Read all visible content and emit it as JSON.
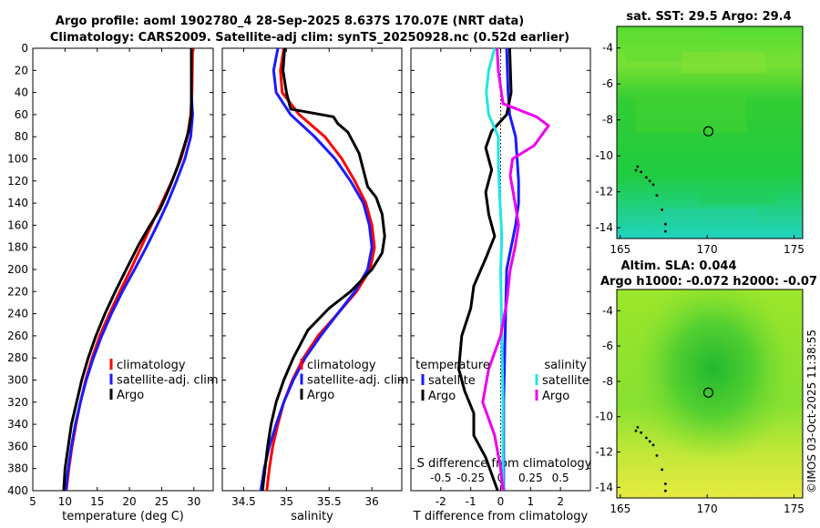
{
  "title": {
    "line1": "Argo profile: aoml 1902780_4 28-Sep-2025 8.637S 170.07E (NRT data)",
    "line2": "Climatology: CARS2009. Satellite-adj clim: synTS_20250928.nc (0.52d earlier)"
  },
  "side_label": "©IMOS 03-Oct-2025 11:38:55",
  "colors": {
    "climatology": "#ff0000",
    "satellite": "#1a1aff",
    "argo": "#000000",
    "sat_diff": "#22e5e5",
    "argo_sal_diff": "#ee00ee"
  },
  "depth_ticks": [
    0,
    20,
    40,
    60,
    80,
    100,
    120,
    140,
    160,
    180,
    200,
    220,
    240,
    260,
    280,
    300,
    320,
    340,
    360,
    380,
    400
  ],
  "chart_data": [
    {
      "type": "line",
      "name": "temperature",
      "xlabel": "temperature (deg C)",
      "ylabel": "depth",
      "xlim": [
        5,
        33
      ],
      "ylim": [
        400,
        0
      ],
      "xticks": [
        5,
        10,
        15,
        20,
        25,
        30
      ],
      "legend": [
        "climatology",
        "satellite-adj. clim",
        "Argo"
      ],
      "series": [
        {
          "name": "climatology",
          "color_key": "climatology",
          "points": [
            [
              29.8,
              0
            ],
            [
              29.7,
              40
            ],
            [
              29.5,
              60
            ],
            [
              29.0,
              80
            ],
            [
              28.0,
              100
            ],
            [
              26.6,
              120
            ],
            [
              25.0,
              140
            ],
            [
              23.4,
              160
            ],
            [
              21.8,
              180
            ],
            [
              20.2,
              200
            ],
            [
              18.5,
              220
            ],
            [
              16.9,
              240
            ],
            [
              15.4,
              260
            ],
            [
              14.2,
              280
            ],
            [
              13.2,
              300
            ],
            [
              12.4,
              320
            ],
            [
              11.7,
              340
            ],
            [
              11.1,
              360
            ],
            [
              10.6,
              380
            ],
            [
              10.2,
              400
            ]
          ]
        },
        {
          "name": "satellite-adj. clim",
          "color_key": "satellite",
          "points": [
            [
              29.6,
              0
            ],
            [
              29.6,
              40
            ],
            [
              29.8,
              60
            ],
            [
              29.5,
              80
            ],
            [
              28.6,
              100
            ],
            [
              27.3,
              120
            ],
            [
              25.9,
              140
            ],
            [
              24.3,
              160
            ],
            [
              22.6,
              180
            ],
            [
              20.8,
              200
            ],
            [
              18.9,
              220
            ],
            [
              17.2,
              240
            ],
            [
              15.7,
              260
            ],
            [
              14.4,
              280
            ],
            [
              13.3,
              300
            ],
            [
              12.4,
              320
            ],
            [
              11.6,
              340
            ],
            [
              11.0,
              360
            ],
            [
              10.5,
              380
            ],
            [
              10.1,
              400
            ]
          ]
        },
        {
          "name": "Argo",
          "color_key": "argo",
          "points": [
            [
              29.6,
              0
            ],
            [
              29.6,
              30
            ],
            [
              29.6,
              60
            ],
            [
              29.2,
              75
            ],
            [
              28.4,
              90
            ],
            [
              27.6,
              105
            ],
            [
              26.3,
              125
            ],
            [
              24.8,
              145
            ],
            [
              23.0,
              162
            ],
            [
              21.4,
              178
            ],
            [
              19.5,
              200
            ],
            [
              17.8,
              220
            ],
            [
              16.2,
              240
            ],
            [
              14.8,
              260
            ],
            [
              13.6,
              280
            ],
            [
              12.6,
              300
            ],
            [
              11.8,
              320
            ],
            [
              11.0,
              340
            ],
            [
              10.5,
              360
            ],
            [
              10.0,
              380
            ],
            [
              9.8,
              400
            ]
          ]
        }
      ]
    },
    {
      "type": "line",
      "name": "salinity",
      "xlabel": "salinity",
      "ylabel": "depth",
      "xlim": [
        34.25,
        36.35
      ],
      "ylim": [
        400,
        0
      ],
      "xticks": [
        34.5,
        35,
        35.5,
        36
      ],
      "legend": [
        "climatology",
        "satellite-adj. clim",
        "Argo"
      ],
      "series": [
        {
          "name": "climatology",
          "color_key": "climatology",
          "points": [
            [
              34.97,
              0
            ],
            [
              34.93,
              20
            ],
            [
              34.95,
              40
            ],
            [
              35.15,
              60
            ],
            [
              35.45,
              80
            ],
            [
              35.65,
              100
            ],
            [
              35.8,
              120
            ],
            [
              35.93,
              140
            ],
            [
              36.0,
              160
            ],
            [
              36.03,
              180
            ],
            [
              35.98,
              200
            ],
            [
              35.82,
              220
            ],
            [
              35.6,
              240
            ],
            [
              35.37,
              260
            ],
            [
              35.2,
              280
            ],
            [
              35.07,
              300
            ],
            [
              34.97,
              320
            ],
            [
              34.9,
              340
            ],
            [
              34.84,
              360
            ],
            [
              34.8,
              380
            ],
            [
              34.77,
              400
            ]
          ]
        },
        {
          "name": "satellite-adj. clim",
          "color_key": "satellite",
          "points": [
            [
              34.9,
              0
            ],
            [
              34.85,
              20
            ],
            [
              34.88,
              40
            ],
            [
              35.05,
              60
            ],
            [
              35.33,
              80
            ],
            [
              35.57,
              100
            ],
            [
              35.75,
              120
            ],
            [
              35.9,
              140
            ],
            [
              35.97,
              160
            ],
            [
              36.0,
              180
            ],
            [
              35.95,
              200
            ],
            [
              35.8,
              220
            ],
            [
              35.6,
              240
            ],
            [
              35.4,
              260
            ],
            [
              35.22,
              280
            ],
            [
              35.08,
              300
            ],
            [
              34.97,
              320
            ],
            [
              34.88,
              340
            ],
            [
              34.8,
              360
            ],
            [
              34.74,
              380
            ],
            [
              34.7,
              400
            ]
          ]
        },
        {
          "name": "Argo",
          "color_key": "argo",
          "points": [
            [
              34.98,
              0
            ],
            [
              34.96,
              20
            ],
            [
              35.0,
              40
            ],
            [
              35.05,
              55
            ],
            [
              35.55,
              62
            ],
            [
              35.6,
              68
            ],
            [
              35.72,
              76
            ],
            [
              35.85,
              95
            ],
            [
              35.95,
              125
            ],
            [
              36.05,
              135
            ],
            [
              36.12,
              150
            ],
            [
              36.15,
              170
            ],
            [
              36.12,
              185
            ],
            [
              36.0,
              200
            ],
            [
              35.75,
              220
            ],
            [
              35.5,
              235
            ],
            [
              35.25,
              255
            ],
            [
              35.08,
              280
            ],
            [
              34.97,
              300
            ],
            [
              34.88,
              320
            ],
            [
              34.82,
              340
            ],
            [
              34.78,
              360
            ],
            [
              34.75,
              380
            ],
            [
              34.72,
              400
            ]
          ]
        }
      ]
    },
    {
      "type": "line",
      "name": "differences",
      "xlabel": "T difference from climatology",
      "xlabel2": "S difference from climatology",
      "ylabel": "depth",
      "xlim": [
        -3,
        3
      ],
      "s_xlim": [
        -0.75,
        0.75
      ],
      "ylim": [
        400,
        0
      ],
      "xticks": [
        -2,
        -1,
        0,
        1,
        2
      ],
      "s_xticks": [
        -0.5,
        -0.25,
        0,
        0.25,
        0.5
      ],
      "legend_temperature": {
        "header": "temperature",
        "items": [
          "satellite",
          "Argo"
        ]
      },
      "legend_salinity": {
        "header": "salinity",
        "items": [
          "satellite",
          "Argo"
        ]
      },
      "series": [
        {
          "name": "T satellite",
          "color_key": "satellite",
          "points": [
            [
              0.2,
              0
            ],
            [
              0.25,
              40
            ],
            [
              0.3,
              60
            ],
            [
              0.5,
              80
            ],
            [
              0.55,
              100
            ],
            [
              0.6,
              120
            ],
            [
              0.6,
              140
            ],
            [
              0.5,
              160
            ],
            [
              0.35,
              180
            ],
            [
              0.2,
              200
            ],
            [
              0.15,
              260
            ],
            [
              0.1,
              320
            ],
            [
              0.1,
              400
            ]
          ]
        },
        {
          "name": "T Argo",
          "color_key": "argo",
          "points": [
            [
              0.3,
              0
            ],
            [
              0.35,
              40
            ],
            [
              0.2,
              60
            ],
            [
              -0.3,
              75
            ],
            [
              -0.5,
              90
            ],
            [
              -0.3,
              110
            ],
            [
              -0.5,
              130
            ],
            [
              -0.4,
              150
            ],
            [
              -0.2,
              170
            ],
            [
              -0.5,
              190
            ],
            [
              -0.9,
              215
            ],
            [
              -1.0,
              235
            ],
            [
              -1.3,
              260
            ],
            [
              -1.4,
              290
            ],
            [
              -1.2,
              310
            ],
            [
              -0.9,
              330
            ],
            [
              -0.9,
              350
            ],
            [
              -0.5,
              370
            ],
            [
              -0.1,
              400
            ]
          ]
        },
        {
          "name": "S satellite",
          "color_key": "sat_diff",
          "points": [
            [
              -0.05,
              0
            ],
            [
              -0.1,
              20
            ],
            [
              -0.12,
              40
            ],
            [
              -0.1,
              60
            ],
            [
              -0.02,
              80
            ],
            [
              -0.02,
              100
            ],
            [
              -0.01,
              130
            ],
            [
              0.0,
              150
            ],
            [
              0.01,
              170
            ],
            [
              0.0,
              200
            ],
            [
              0.01,
              260
            ],
            [
              0.02,
              320
            ],
            [
              0.02,
              400
            ]
          ]
        },
        {
          "name": "S Argo",
          "color_key": "argo_sal_diff",
          "points": [
            [
              -0.03,
              0
            ],
            [
              -0.02,
              20
            ],
            [
              0.02,
              50
            ],
            [
              0.3,
              62
            ],
            [
              0.4,
              70
            ],
            [
              0.28,
              88
            ],
            [
              0.1,
              100
            ],
            [
              0.08,
              115
            ],
            [
              0.12,
              140
            ],
            [
              0.15,
              160
            ],
            [
              0.12,
              180
            ],
            [
              0.08,
              200
            ],
            [
              0.05,
              230
            ],
            [
              0.0,
              260
            ],
            [
              -0.1,
              290
            ],
            [
              -0.15,
              320
            ],
            [
              -0.05,
              350
            ],
            [
              0.0,
              380
            ],
            [
              0.02,
              400
            ]
          ]
        }
      ]
    },
    {
      "type": "heatmap",
      "name": "sst-map",
      "title": "sat. SST: 29.5 Argo: 29.4",
      "xlim": [
        164.8,
        175.5
      ],
      "ylim": [
        -14.6,
        -2.8
      ],
      "xticks": [
        165,
        170,
        175
      ],
      "yticks": [
        -4,
        -6,
        -8,
        -10,
        -12,
        -14
      ],
      "marker": {
        "lon": 170.07,
        "lat": -8.637
      }
    },
    {
      "type": "heatmap",
      "name": "sla-map",
      "title": "Altim. SLA: 0.044",
      "subtitle": "Argo h1000: -0.072 h2000: -0.07",
      "xlim": [
        164.8,
        175.5
      ],
      "ylim": [
        -14.6,
        -2.8
      ],
      "xticks": [
        165,
        170,
        175
      ],
      "yticks": [
        -4,
        -6,
        -8,
        -10,
        -12,
        -14
      ],
      "marker": {
        "lon": 170.07,
        "lat": -8.637
      }
    }
  ]
}
